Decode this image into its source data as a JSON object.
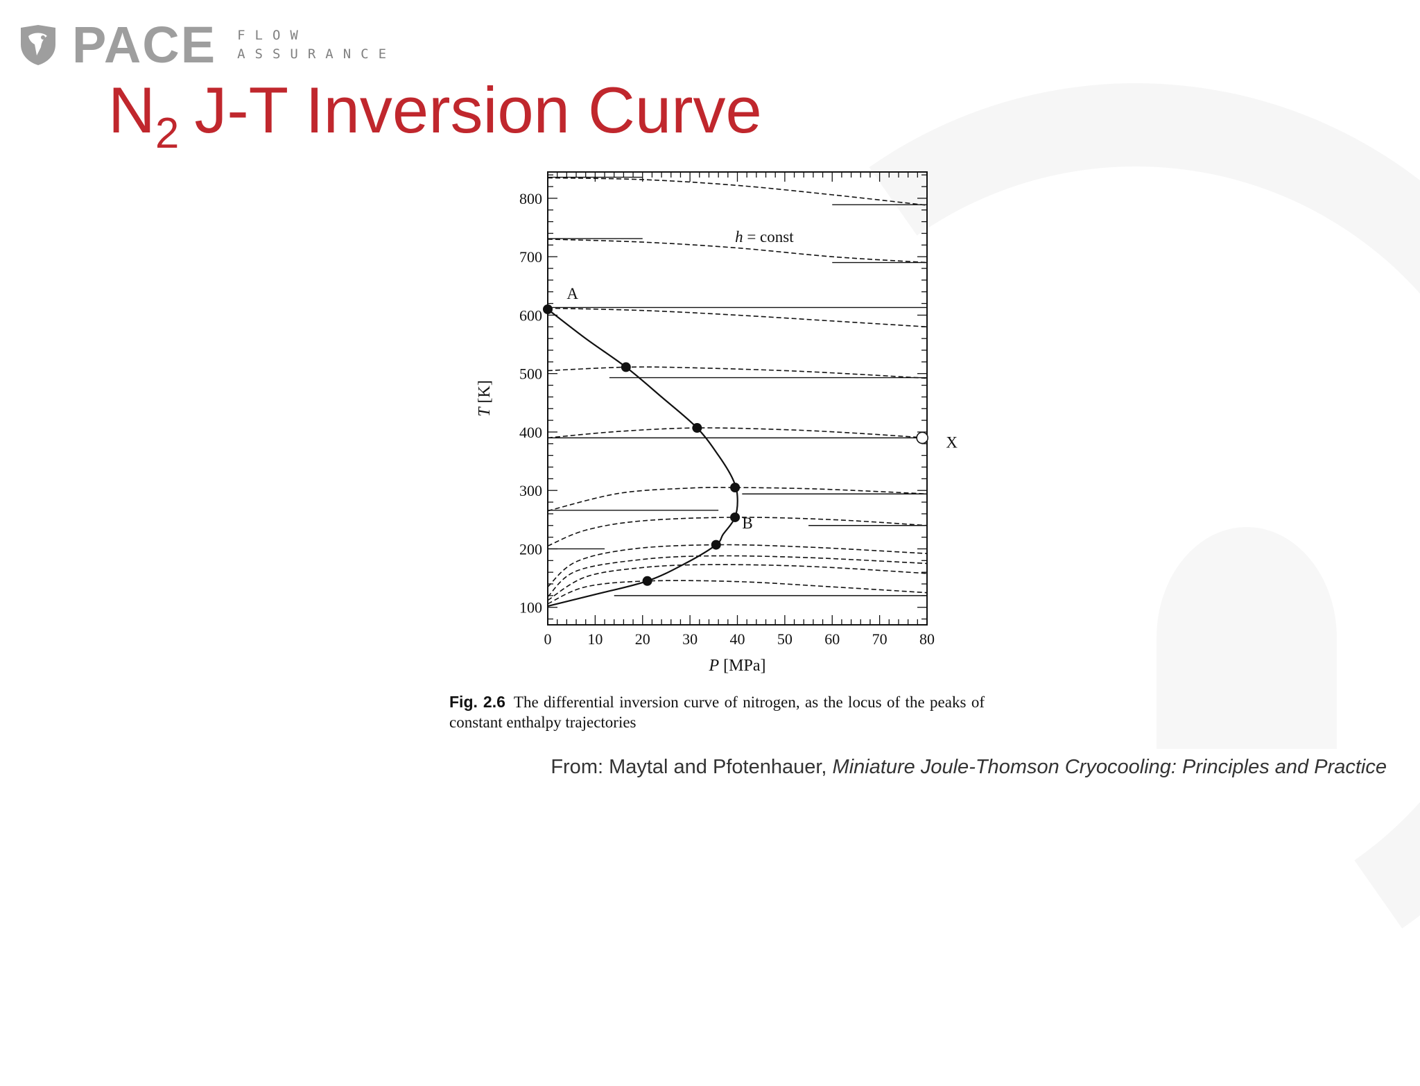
{
  "brand": {
    "name": "PACE",
    "sub_line1": "FLOW",
    "sub_line2": "ASSURANCE",
    "accent_color": "#c0272d",
    "logo_color": "#9e9e9e"
  },
  "title": {
    "main": "N",
    "subscript": "2",
    "rest": "J-T Inversion Curve"
  },
  "caption": {
    "fig_label": "Fig. 2.6",
    "text": "The differential inversion curve of nitrogen, as the locus of the peaks of constant enthalpy trajectories"
  },
  "source": {
    "prefix": "From: Maytal and Pfotenhauer,",
    "book": "Miniature Joule-Thomson Cryocooling: Principles and Practice"
  },
  "chart_data": {
    "type": "line",
    "xlabel": "P [MPa]",
    "ylabel": "T [K]",
    "xlim": [
      0,
      80
    ],
    "ylim": [
      70,
      845
    ],
    "x_ticks": [
      0,
      10,
      20,
      30,
      40,
      50,
      60,
      70,
      80
    ],
    "y_ticks": [
      100,
      200,
      300,
      400,
      500,
      600,
      700,
      800
    ],
    "annotation": "h = const",
    "point_labels": [
      {
        "label": "A",
        "x": 4,
        "y": 628
      },
      {
        "label": "B",
        "x": 41,
        "y": 235
      },
      {
        "label": "X",
        "x": 84,
        "y": 373
      }
    ],
    "inversion_points": [
      {
        "x": 0,
        "y": 610
      },
      {
        "x": 16.5,
        "y": 511
      },
      {
        "x": 31.5,
        "y": 407
      },
      {
        "x": 39.5,
        "y": 305
      },
      {
        "x": 39.5,
        "y": 254
      },
      {
        "x": 35.5,
        "y": 207
      },
      {
        "x": 21,
        "y": 145
      }
    ],
    "open_point": {
      "x": 79,
      "y": 390,
      "label": "X"
    },
    "inversion_curve": [
      [
        0,
        610
      ],
      [
        8,
        560
      ],
      [
        16.5,
        511
      ],
      [
        24,
        460
      ],
      [
        31.5,
        407
      ],
      [
        36,
        360
      ],
      [
        39,
        320
      ],
      [
        40,
        290
      ],
      [
        39.5,
        254
      ],
      [
        37,
        225
      ],
      [
        35.5,
        207
      ],
      [
        29,
        175
      ],
      [
        21,
        145
      ],
      [
        10,
        122
      ],
      [
        0,
        102
      ]
    ],
    "isenthalps": [
      [
        [
          0,
          835
        ],
        [
          20,
          832
        ],
        [
          40,
          822
        ],
        [
          60,
          806
        ],
        [
          80,
          788
        ]
      ],
      [
        [
          0,
          730
        ],
        [
          20,
          725
        ],
        [
          40,
          715
        ],
        [
          60,
          700
        ],
        [
          80,
          690
        ]
      ],
      [
        [
          0,
          612
        ],
        [
          20,
          608
        ],
        [
          40,
          600
        ],
        [
          60,
          590
        ],
        [
          80,
          580
        ]
      ],
      [
        [
          0,
          505
        ],
        [
          16.5,
          511
        ],
        [
          30,
          510
        ],
        [
          50,
          505
        ],
        [
          65,
          499
        ],
        [
          80,
          492
        ]
      ],
      [
        [
          0,
          390
        ],
        [
          15,
          401
        ],
        [
          31.5,
          407
        ],
        [
          50,
          404
        ],
        [
          65,
          398
        ],
        [
          80,
          390
        ]
      ],
      [
        [
          0,
          265
        ],
        [
          15,
          295
        ],
        [
          30,
          304
        ],
        [
          39.5,
          305
        ],
        [
          55,
          303
        ],
        [
          70,
          298
        ],
        [
          80,
          294
        ]
      ],
      [
        [
          0,
          205
        ],
        [
          8,
          232
        ],
        [
          20,
          248
        ],
        [
          39.5,
          254
        ],
        [
          60,
          250
        ],
        [
          80,
          240
        ]
      ],
      [
        [
          0,
          135
        ],
        [
          6,
          178
        ],
        [
          18,
          200
        ],
        [
          35.5,
          207
        ],
        [
          55,
          203
        ],
        [
          80,
          192
        ]
      ],
      [
        [
          0,
          118
        ],
        [
          6,
          162
        ],
        [
          20,
          182
        ],
        [
          35,
          188
        ],
        [
          55,
          185
        ],
        [
          80,
          175
        ]
      ],
      [
        [
          0,
          112
        ],
        [
          8,
          152
        ],
        [
          20,
          168
        ],
        [
          34,
          173
        ],
        [
          55,
          170
        ],
        [
          80,
          158
        ]
      ],
      [
        [
          0,
          106
        ],
        [
          8,
          135
        ],
        [
          21,
          145
        ],
        [
          40,
          144
        ],
        [
          60,
          135
        ],
        [
          80,
          125
        ]
      ]
    ],
    "horizontal_lines": [
      [
        [
          0,
          836
        ],
        [
          20,
          836
        ]
      ],
      [
        [
          60,
          789
        ],
        [
          80,
          789
        ]
      ],
      [
        [
          0,
          731
        ],
        [
          20,
          731
        ]
      ],
      [
        [
          60,
          690
        ],
        [
          80,
          690
        ]
      ],
      [
        [
          0,
          613
        ],
        [
          80,
          613
        ]
      ],
      [
        [
          13,
          493
        ],
        [
          80,
          493
        ]
      ],
      [
        [
          0,
          390
        ],
        [
          80,
          390
        ]
      ],
      [
        [
          41,
          294
        ],
        [
          80,
          294
        ]
      ],
      [
        [
          0,
          266
        ],
        [
          36,
          266
        ]
      ],
      [
        [
          55,
          240
        ],
        [
          80,
          240
        ]
      ],
      [
        [
          0,
          200
        ],
        [
          12,
          200
        ]
      ],
      [
        [
          14,
          120
        ],
        [
          80,
          120
        ]
      ]
    ],
    "grid": false,
    "legend": "none"
  }
}
